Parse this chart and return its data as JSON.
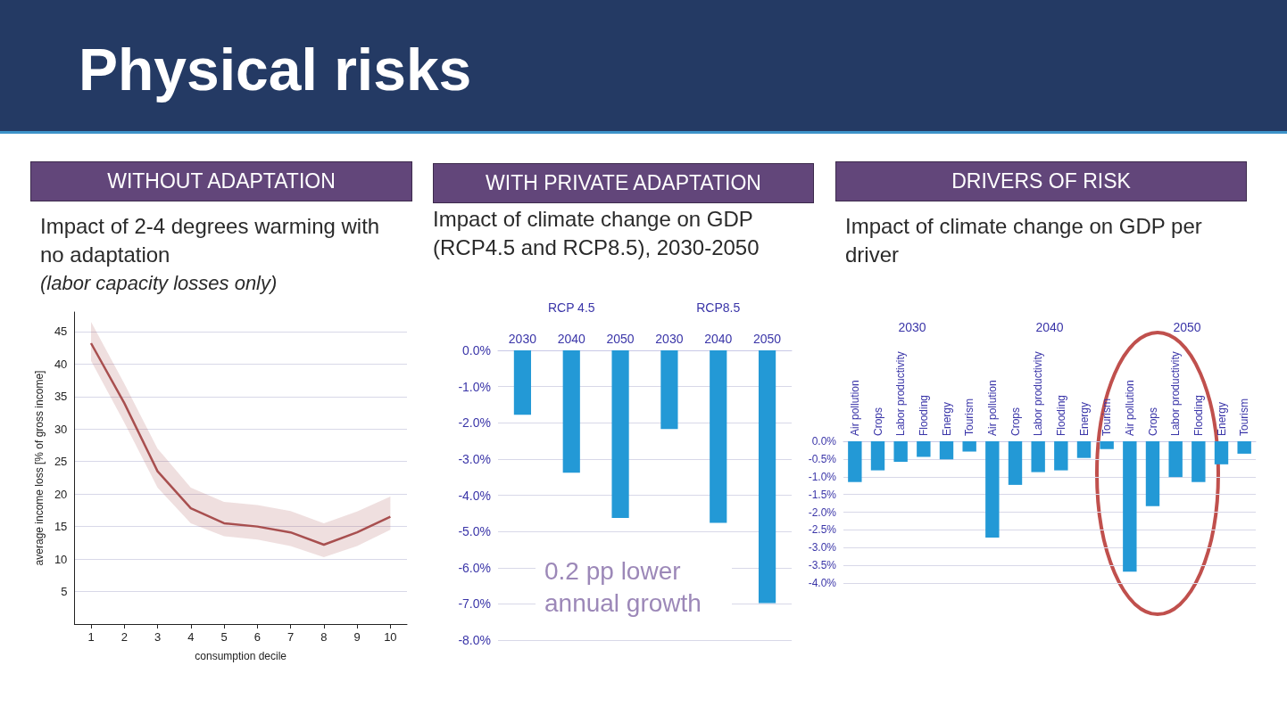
{
  "chart_data": [
    {
      "type": "other",
      "title": "Physical risks"
    },
    {
      "type": "line",
      "title": "WITHOUT ADAPTATION",
      "subtitle": "Impact of 2-4 degrees warming with no adaptation",
      "annotations": [
        "(labor capacity losses only)"
      ],
      "xlabel": "consumption decile",
      "ylabel": "average income loss [% of gross income]",
      "x": [
        1,
        2,
        3,
        4,
        5,
        6,
        7,
        8,
        9,
        10
      ],
      "series": [
        {
          "color": "#a84f4f",
          "values": [
            43.2,
            34,
            23.5,
            17.8,
            15.5,
            15,
            14.1,
            12.2,
            14.1,
            16.5
          ],
          "lower": [
            40.5,
            31,
            21,
            15.5,
            13.5,
            13,
            12,
            10.3,
            12,
            14.5
          ],
          "upper": [
            46.5,
            37,
            27,
            21,
            18.8,
            18.3,
            17.4,
            15.5,
            17.3,
            19.6
          ]
        }
      ],
      "xlim": [
        0.5,
        10.5
      ],
      "xticks": [
        1,
        2,
        3,
        4,
        5,
        6,
        7,
        8,
        9,
        10
      ],
      "ylim": [
        0,
        48
      ],
      "yticks": [
        5,
        10,
        15,
        20,
        25,
        30,
        35,
        40,
        45
      ],
      "grid": "y"
    },
    {
      "type": "bar",
      "title": "WITH PRIVATE ADAPTATION",
      "subtitle": "Impact of climate change on GDP (RCP4.5 and RCP8.5), 2030-2050",
      "annotations": [
        "RCP 4.5",
        "RCP8.5",
        "0.2 pp lower annual growth"
      ],
      "categories": [
        "2030",
        "2040",
        "2050",
        "2030",
        "2040",
        "2050"
      ],
      "color": "#2399d6",
      "values": [
        -1.78,
        -3.38,
        -4.63,
        -2.17,
        -4.76,
        -6.98
      ],
      "ylim": [
        -8,
        0
      ],
      "yticks": [
        {
          "value": 0,
          "label": "0.0%"
        },
        {
          "value": -1,
          "label": "-1.0%"
        },
        {
          "value": -2,
          "label": "-2.0%"
        },
        {
          "value": -3,
          "label": "-3.0%"
        },
        {
          "value": -4,
          "label": "-4.0%"
        },
        {
          "value": -5,
          "label": "-5.0%"
        },
        {
          "value": -6,
          "label": "-6.0%"
        },
        {
          "value": -7,
          "label": "-7.0%"
        },
        {
          "value": -8,
          "label": "-8.0%"
        }
      ],
      "grid": "y"
    },
    {
      "type": "bar",
      "title": "DRIVERS OF RISK",
      "subtitle": "Impact of climate change on GDP per driver",
      "annotations": [
        "2030",
        "2040",
        "2050"
      ],
      "categories": [
        "Air pollution",
        "Crops",
        "Labor productivity",
        "Flooding",
        "Energy",
        "Tourism",
        "Air pollution",
        "Crops",
        "Labor productivity",
        "Flooding",
        "Energy",
        "Tourism",
        "Air pollution",
        "Crops",
        "Labor productivity",
        "Flooding",
        "Energy",
        "Tourism"
      ],
      "color": "#2399d6",
      "values": [
        -1.15,
        -0.82,
        -0.58,
        -0.44,
        -0.51,
        -0.29,
        -2.72,
        -1.23,
        -0.87,
        -0.82,
        -0.47,
        -0.22,
        -3.68,
        -1.83,
        -1.01,
        -1.15,
        -0.65,
        -0.35
      ],
      "ylim": [
        -4,
        0
      ],
      "yticks": [
        {
          "value": 0,
          "label": "0.0%"
        },
        {
          "value": -0.5,
          "label": "-0.5%"
        },
        {
          "value": -1,
          "label": "-1.0%"
        },
        {
          "value": -1.5,
          "label": "-1.5%"
        },
        {
          "value": -2,
          "label": "-2.0%"
        },
        {
          "value": -2.5,
          "label": "-2.5%"
        },
        {
          "value": -3,
          "label": "-3.0%"
        },
        {
          "value": -3.5,
          "label": "-3.5%"
        },
        {
          "value": -4,
          "label": "-4.0%"
        }
      ],
      "grid": "y"
    }
  ]
}
